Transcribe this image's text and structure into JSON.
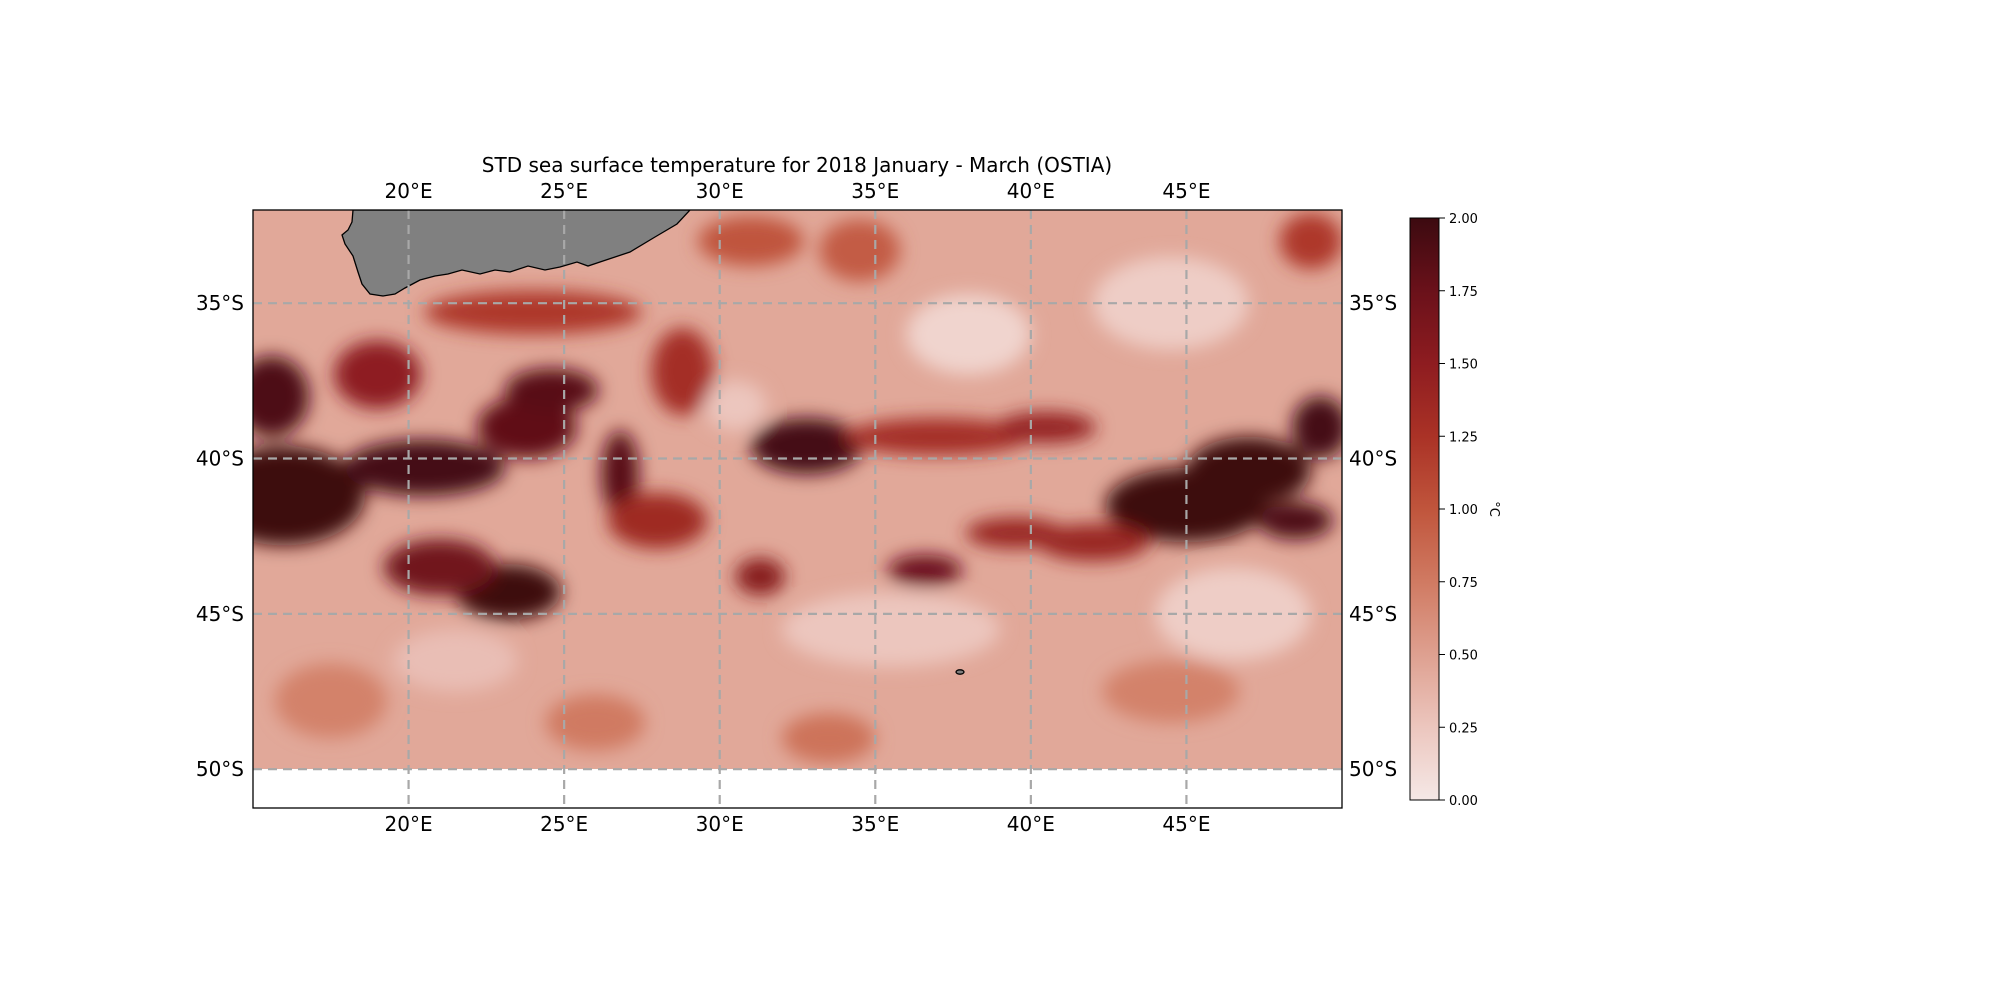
{
  "title": "STD sea surface temperature for 2018 January - March (OSTIA)",
  "map": {
    "lon_range": [
      15,
      50
    ],
    "lat_range": [
      -51.25,
      -32
    ],
    "data_south_limit": -50,
    "lon_ticks": [
      20,
      25,
      30,
      35,
      40,
      45
    ],
    "lon_labels": [
      "20°E",
      "25°E",
      "30°E",
      "35°E",
      "40°E",
      "45°E"
    ],
    "lat_ticks": [
      -35,
      -40,
      -45,
      -50
    ],
    "lat_labels": [
      "35°S",
      "40°S",
      "45°S",
      "50°S"
    ],
    "gridlines": true,
    "land_color": "#808080",
    "land_features": [
      "africa-south-coast",
      "island"
    ]
  },
  "colorbar": {
    "label": "°C",
    "range": [
      0.0,
      2.0
    ],
    "ticks": [
      "0.00",
      "0.25",
      "0.50",
      "0.75",
      "1.00",
      "1.25",
      "1.50",
      "1.75",
      "2.00"
    ],
    "colors": [
      "#f5e8e6",
      "#ecc6be",
      "#dea090",
      "#d07a62",
      "#c0553c",
      "#aa3226",
      "#8e1c20",
      "#6a111a",
      "#3c0a10"
    ]
  },
  "chart_data": {
    "type": "heatmap",
    "variable": "STD sea surface temperature",
    "units": "°C",
    "vmin": 0.0,
    "vmax": 2.0,
    "background_level": 0.45,
    "features": [
      {
        "lon": 16.0,
        "lat": -41.2,
        "value": 2.0,
        "rlon": 2.6,
        "rlat": 1.6
      },
      {
        "lon": 15.6,
        "lat": -38.0,
        "value": 1.9,
        "rlon": 1.2,
        "rlat": 1.3
      },
      {
        "lon": 20.5,
        "lat": -40.3,
        "value": 1.95,
        "rlon": 2.6,
        "rlat": 0.9
      },
      {
        "lon": 23.8,
        "lat": -39.0,
        "value": 1.8,
        "rlon": 1.6,
        "rlat": 1.0
      },
      {
        "lon": 24.6,
        "lat": -37.8,
        "value": 1.85,
        "rlon": 1.5,
        "rlat": 0.7
      },
      {
        "lon": 23.2,
        "lat": -44.3,
        "value": 2.0,
        "rlon": 1.7,
        "rlat": 0.9
      },
      {
        "lon": 21.0,
        "lat": -43.5,
        "value": 1.7,
        "rlon": 1.8,
        "rlat": 0.9
      },
      {
        "lon": 26.8,
        "lat": -40.5,
        "value": 1.85,
        "rlon": 0.6,
        "rlat": 1.4
      },
      {
        "lon": 19.0,
        "lat": -37.3,
        "value": 1.5,
        "rlon": 1.4,
        "rlat": 1.1
      },
      {
        "lon": 28.8,
        "lat": -37.2,
        "value": 1.3,
        "rlon": 1.0,
        "rlat": 1.4
      },
      {
        "lon": 28.0,
        "lat": -42.0,
        "value": 1.35,
        "rlon": 1.6,
        "rlat": 0.9
      },
      {
        "lon": 32.8,
        "lat": -39.6,
        "value": 1.95,
        "rlon": 1.8,
        "rlat": 0.9
      },
      {
        "lon": 31.3,
        "lat": -43.8,
        "value": 1.55,
        "rlon": 0.8,
        "rlat": 0.6
      },
      {
        "lon": 36.6,
        "lat": -43.6,
        "value": 1.75,
        "rlon": 1.2,
        "rlat": 0.5
      },
      {
        "lon": 37.0,
        "lat": -39.3,
        "value": 1.3,
        "rlon": 3.0,
        "rlat": 0.6
      },
      {
        "lon": 40.5,
        "lat": -39.0,
        "value": 1.45,
        "rlon": 1.6,
        "rlat": 0.5
      },
      {
        "lon": 39.5,
        "lat": -42.4,
        "value": 1.4,
        "rlon": 1.6,
        "rlat": 0.5
      },
      {
        "lon": 45.0,
        "lat": -41.5,
        "value": 2.0,
        "rlon": 2.6,
        "rlat": 1.2
      },
      {
        "lon": 47.0,
        "lat": -40.4,
        "value": 2.0,
        "rlon": 2.0,
        "rlat": 1.1
      },
      {
        "lon": 49.3,
        "lat": -39.0,
        "value": 1.95,
        "rlon": 0.9,
        "rlat": 1.0
      },
      {
        "lon": 48.5,
        "lat": -42.0,
        "value": 1.9,
        "rlon": 1.2,
        "rlat": 0.6
      },
      {
        "lon": 42.0,
        "lat": -42.7,
        "value": 1.4,
        "rlon": 1.8,
        "rlat": 0.6
      },
      {
        "lon": 24.0,
        "lat": -35.3,
        "value": 1.2,
        "rlon": 3.5,
        "rlat": 0.7
      },
      {
        "lon": 31.0,
        "lat": -33.0,
        "value": 1.0,
        "rlon": 1.7,
        "rlat": 0.8
      },
      {
        "lon": 34.5,
        "lat": -33.3,
        "value": 0.95,
        "rlon": 1.3,
        "rlat": 1.0
      },
      {
        "lon": 49.0,
        "lat": -33.0,
        "value": 1.2,
        "rlon": 1.0,
        "rlat": 0.9
      },
      {
        "lon": 17.5,
        "lat": -47.8,
        "value": 0.7,
        "rlon": 1.8,
        "rlat": 1.2
      },
      {
        "lon": 26.0,
        "lat": -48.5,
        "value": 0.75,
        "rlon": 1.6,
        "rlat": 0.9
      },
      {
        "lon": 33.5,
        "lat": -49.0,
        "value": 0.8,
        "rlon": 1.5,
        "rlat": 0.8
      },
      {
        "lon": 44.5,
        "lat": -47.5,
        "value": 0.7,
        "rlon": 2.2,
        "rlat": 1.0
      },
      {
        "lon": 38.0,
        "lat": -36.0,
        "value": 0.15,
        "rlon": 2.0,
        "rlat": 1.3
      },
      {
        "lon": 44.5,
        "lat": -35.0,
        "value": 0.2,
        "rlon": 2.5,
        "rlat": 1.5
      },
      {
        "lon": 30.5,
        "lat": -38.3,
        "value": 0.25,
        "rlon": 1.0,
        "rlat": 0.8
      },
      {
        "lon": 35.5,
        "lat": -45.5,
        "value": 0.25,
        "rlon": 3.5,
        "rlat": 1.2
      },
      {
        "lon": 46.5,
        "lat": -45.0,
        "value": 0.2,
        "rlon": 2.5,
        "rlat": 1.5
      },
      {
        "lon": 21.5,
        "lat": -46.5,
        "value": 0.3,
        "rlon": 2.0,
        "rlat": 1.0
      }
    ]
  }
}
